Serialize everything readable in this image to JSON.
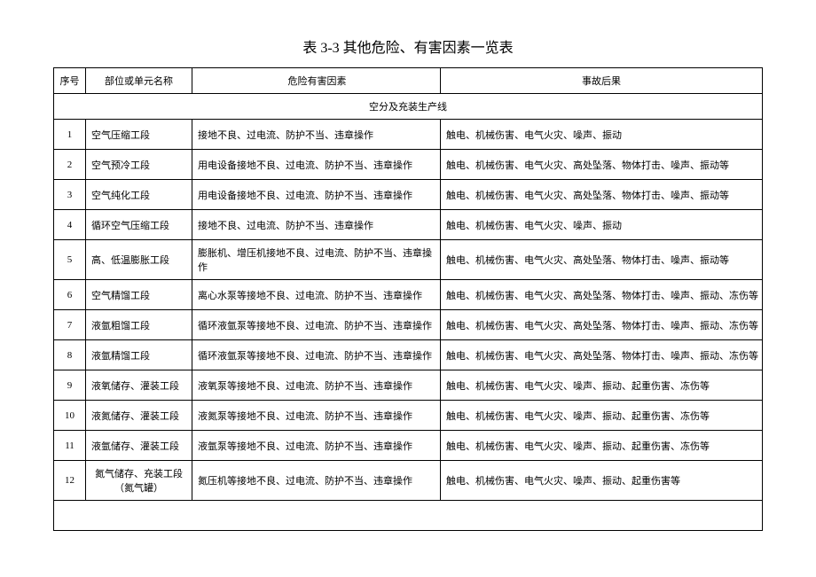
{
  "title": "表 3-3  其他危险、有害因素一览表",
  "columns": {
    "seq": "序号",
    "unit": "部位或单元名称",
    "hazard": "危险有害因素",
    "result": "事故后果"
  },
  "section_header": "空分及充装生产线",
  "col_widths": {
    "seq": 36,
    "unit": 120,
    "hazard": 280
  },
  "font_size_pt": 11,
  "border_color": "#000000",
  "background_color": "#ffffff",
  "text_color": "#000000",
  "rows": [
    {
      "seq": "1",
      "unit": "空气压缩工段",
      "hazard": "接地不良、过电流、防护不当、违章操作",
      "result": "触电、机械伤害、电气火灾、噪声、振动"
    },
    {
      "seq": "2",
      "unit": "空气预冷工段",
      "hazard": "用电设备接地不良、过电流、防护不当、违章操作",
      "result": "触电、机械伤害、电气火灾、高处坠落、物体打击、噪声、振动等"
    },
    {
      "seq": "3",
      "unit": "空气纯化工段",
      "hazard": "用电设备接地不良、过电流、防护不当、违章操作",
      "result": "触电、机械伤害、电气火灾、高处坠落、物体打击、噪声、振动等"
    },
    {
      "seq": "4",
      "unit": "循环空气压缩工段",
      "hazard": "接地不良、过电流、防护不当、违章操作",
      "result": "触电、机械伤害、电气火灾、噪声、振动"
    },
    {
      "seq": "5",
      "unit": "高、低温膨胀工段",
      "hazard": "膨胀机、增压机接地不良、过电流、防护不当、违章操作",
      "result": "触电、机械伤害、电气火灾、高处坠落、物体打击、噪声、振动等"
    },
    {
      "seq": "6",
      "unit": "空气精馏工段",
      "hazard": "离心水泵等接地不良、过电流、防护不当、违章操作",
      "result": "触电、机械伤害、电气火灾、高处坠落、物体打击、噪声、振动、冻伤等"
    },
    {
      "seq": "7",
      "unit": "液氩粗馏工段",
      "hazard": "循环液氩泵等接地不良、过电流、防护不当、违章操作",
      "result": "触电、机械伤害、电气火灾、高处坠落、物体打击、噪声、振动、冻伤等"
    },
    {
      "seq": "8",
      "unit": "液氩精馏工段",
      "hazard": "循环液氩泵等接地不良、过电流、防护不当、违章操作",
      "result": "触电、机械伤害、电气火灾、高处坠落、物体打击、噪声、振动、冻伤等"
    },
    {
      "seq": "9",
      "unit": "液氧储存、灌装工段",
      "hazard": "液氧泵等接地不良、过电流、防护不当、违章操作",
      "result": "触电、机械伤害、电气火灾、噪声、振动、起重伤害、冻伤等"
    },
    {
      "seq": "10",
      "unit": "液氮储存、灌装工段",
      "hazard": "液氮泵等接地不良、过电流、防护不当、违章操作",
      "result": "触电、机械伤害、电气火灾、噪声、振动、起重伤害、冻伤等"
    },
    {
      "seq": "11",
      "unit": "液氩储存、灌装工段",
      "hazard": "液氩泵等接地不良、过电流、防护不当、违章操作",
      "result": "触电、机械伤害、电气火灾、噪声、振动、起重伤害、冻伤等"
    },
    {
      "seq": "12",
      "unit": "氮气储存、充装工段（氮气罐）",
      "unit_center": true,
      "hazard": "氮压机等接地不良、过电流、防护不当、违章操作",
      "result": "触电、机械伤害、电气火灾、噪声、振动、起重伤害等"
    }
  ]
}
